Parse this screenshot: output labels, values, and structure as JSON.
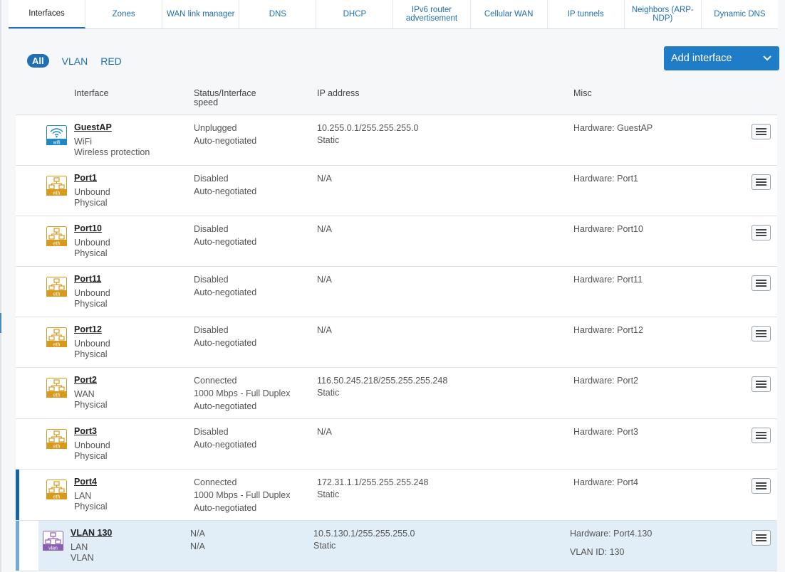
{
  "tabs": [
    {
      "label": "Interfaces",
      "active": true
    },
    {
      "label": "Zones"
    },
    {
      "label": "WAN link manager"
    },
    {
      "label": "DNS"
    },
    {
      "label": "DHCP"
    },
    {
      "label": "IPv6 router advertisement"
    },
    {
      "label": "Cellular WAN"
    },
    {
      "label": "IP tunnels"
    },
    {
      "label": "Neighbors (ARP-NDP)"
    },
    {
      "label": "Dynamic DNS"
    }
  ],
  "filters": {
    "all": "All",
    "vlan": "VLAN",
    "red": "RED",
    "selected": "All"
  },
  "add_button": {
    "label": "Add interface"
  },
  "columns": {
    "interface": "Interface",
    "status": "Status/Interface speed",
    "ip": "IP address",
    "misc": "Misc"
  },
  "colors": {
    "accent": "#1f6fb2",
    "eth_icon": "#d89a1d",
    "wifi_icon": "#1d8ac7",
    "vlan_icon": "#8a5fb0",
    "selected_row": "#e1eef7"
  },
  "rows": [
    {
      "name": "GuestAP",
      "type": "WiFi",
      "sub": "Wireless protection",
      "status": [
        "Unplugged",
        "Auto-negotiated"
      ],
      "ip": [
        "10.255.0.1/255.255.255.0",
        "Static"
      ],
      "misc": "Hardware:  GuestAP",
      "icon": "wifi",
      "icon_label": "wifi"
    },
    {
      "name": "Port1",
      "type": "Unbound",
      "sub": "Physical",
      "status": [
        "Disabled",
        "Auto-negotiated"
      ],
      "ip": [
        "N/A",
        ""
      ],
      "misc": "Hardware:  Port1",
      "icon": "eth",
      "icon_label": "eth"
    },
    {
      "name": "Port10",
      "type": "Unbound",
      "sub": "Physical",
      "status": [
        "Disabled",
        "Auto-negotiated"
      ],
      "ip": [
        "N/A",
        ""
      ],
      "misc": "Hardware:  Port10",
      "icon": "eth",
      "icon_label": "eth"
    },
    {
      "name": "Port11",
      "type": "Unbound",
      "sub": "Physical",
      "status": [
        "Disabled",
        "Auto-negotiated"
      ],
      "ip": [
        "N/A",
        ""
      ],
      "misc": "Hardware:  Port11",
      "icon": "eth",
      "icon_label": "eth"
    },
    {
      "name": "Port12",
      "type": "Unbound",
      "sub": "Physical",
      "status": [
        "Disabled",
        "Auto-negotiated"
      ],
      "ip": [
        "N/A",
        ""
      ],
      "misc": "Hardware:  Port12",
      "icon": "eth",
      "icon_label": "eth"
    },
    {
      "name": "Port2",
      "type": "WAN",
      "sub": "Physical",
      "status": [
        "Connected",
        "1000 Mbps - Full Duplex",
        "Auto-negotiated"
      ],
      "ip": [
        "116.50.245.218/255.255.255.248",
        "Static"
      ],
      "misc": "Hardware:  Port2",
      "icon": "eth",
      "icon_label": "eth"
    },
    {
      "name": "Port3",
      "type": "Unbound",
      "sub": "Physical",
      "status": [
        "Disabled",
        "Auto-negotiated"
      ],
      "ip": [
        "N/A",
        ""
      ],
      "misc": "Hardware:  Port3",
      "icon": "eth",
      "icon_label": "eth"
    },
    {
      "name": "Port4",
      "type": "LAN",
      "sub": "Physical",
      "status": [
        "Connected",
        "1000 Mbps - Full Duplex",
        "Auto-negotiated"
      ],
      "ip": [
        "172.31.1.1/255.255.255.248",
        "Static"
      ],
      "misc": "Hardware:  Port4",
      "icon": "eth",
      "icon_label": "eth"
    },
    {
      "name": "VLAN 130",
      "type": "LAN",
      "sub": "VLAN",
      "status": [
        "N/A",
        "N/A"
      ],
      "ip": [
        "10.5.130.1/255.255.255.0",
        "Static"
      ],
      "misc": "Hardware:  Port4.130",
      "misc2": "VLAN ID: 130",
      "icon": "vlan",
      "icon_label": "vlan"
    }
  ]
}
